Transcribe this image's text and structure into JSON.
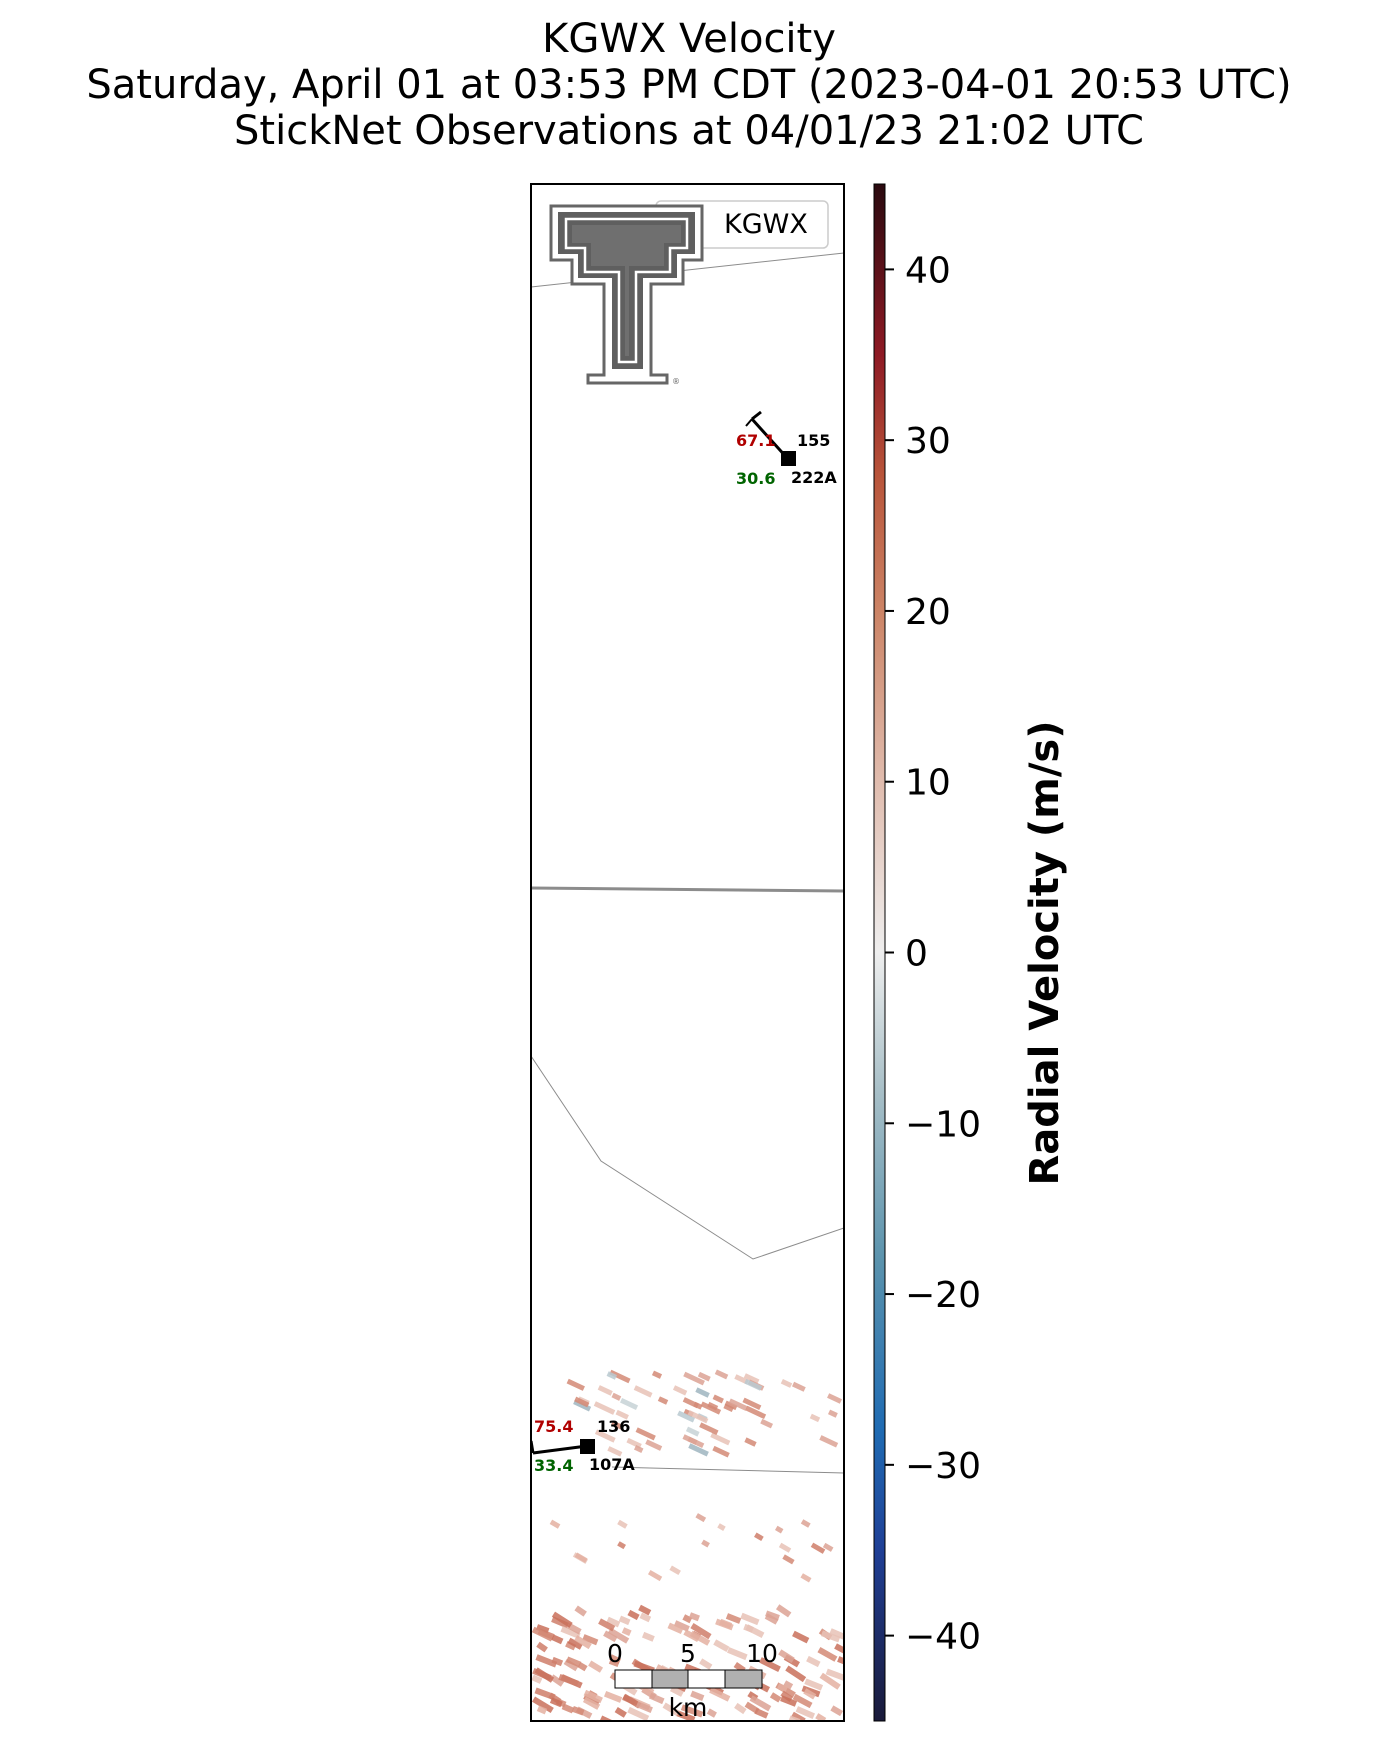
{
  "title": {
    "line1": "KGWX Velocity",
    "line2": "Saturday, April 01 at 03:53 PM CDT (2023-04-01 20:53 UTC)",
    "line3": "StickNet Observations at 04/01/23 21:02 UTC"
  },
  "legend": {
    "radar_label": "KGWX",
    "marker_color": "#5a0a12"
  },
  "stations": [
    {
      "id": "222A",
      "temp": "67.1",
      "dew": "30.6",
      "pressure": "155"
    },
    {
      "id": "107A",
      "temp": "75.4",
      "dew": "33.4",
      "pressure": "136"
    }
  ],
  "colors": {
    "temp": "#b00000",
    "dew": "#006400"
  },
  "scalebar": {
    "labels": [
      "0",
      "5",
      "10"
    ],
    "unit": "km"
  },
  "colorbar": {
    "label": "Radial Velocity (m/s)",
    "range": [
      -45,
      45
    ],
    "ticks": [
      40,
      30,
      20,
      10,
      0,
      -10,
      -20,
      -30,
      -40
    ],
    "tick_labels": [
      "40",
      "30",
      "20",
      "10",
      "0",
      "−10",
      "−20",
      "−30",
      "−40"
    ],
    "stops": [
      {
        "v": -45,
        "c": "#1a1a3a"
      },
      {
        "v": -35,
        "c": "#1f3f96"
      },
      {
        "v": -28,
        "c": "#1f6bb3"
      },
      {
        "v": -18,
        "c": "#5b93ad"
      },
      {
        "v": -8,
        "c": "#a9c0c8"
      },
      {
        "v": 0,
        "c": "#eeeeee"
      },
      {
        "v": 10,
        "c": "#e0bcae"
      },
      {
        "v": 20,
        "c": "#cc8466"
      },
      {
        "v": 28,
        "c": "#b8543a"
      },
      {
        "v": 35,
        "c": "#8e1a24"
      },
      {
        "v": 45,
        "c": "#2a0a10"
      }
    ]
  }
}
